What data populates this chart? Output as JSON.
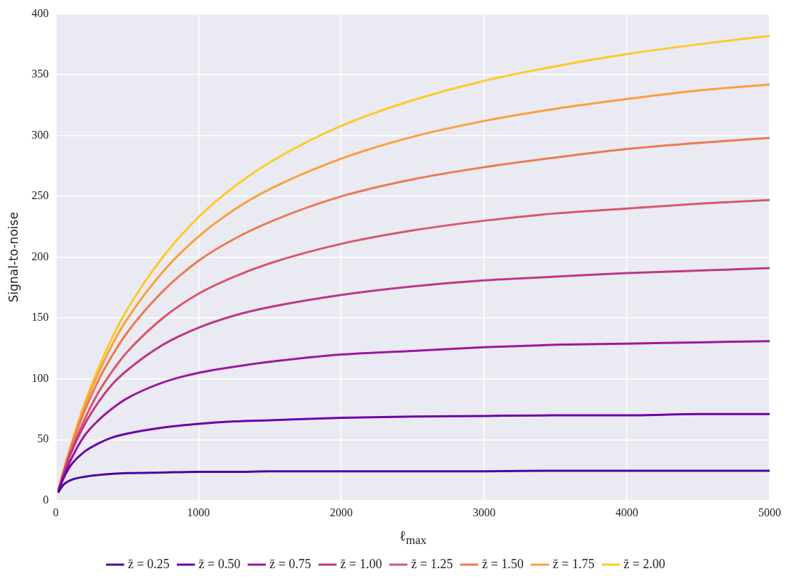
{
  "chart_data": {
    "type": "line",
    "xlabel": "ℓ$_{max}$",
    "ylabel": "Signal-to-noise",
    "x": [
      20,
      50,
      100,
      200,
      300,
      400,
      500,
      750,
      1000,
      1250,
      1500,
      2000,
      2500,
      3000,
      3500,
      4000,
      4500,
      5000
    ],
    "xlim": [
      0,
      5000
    ],
    "xticks": [
      0,
      1000,
      2000,
      3000,
      4000,
      5000
    ],
    "ylim": [
      0,
      400
    ],
    "yticks": [
      0,
      50,
      100,
      150,
      200,
      250,
      300,
      350,
      400
    ],
    "grid": true,
    "legend": "bottom",
    "marker": "none",
    "line_style": "solid",
    "series": [
      {
        "name": "z̄ = 0.25",
        "color": "#4c02a1",
        "values": [
          7,
          12.5,
          16.5,
          19.5,
          21,
          22,
          22.5,
          23,
          23.5,
          23.5,
          24,
          24,
          24,
          24,
          24.5,
          24.5,
          24.5,
          24.5
        ]
      },
      {
        "name": "z̄ = 0.50",
        "color": "#6a00a8",
        "values": [
          8,
          17,
          28,
          40,
          47,
          52,
          55,
          60,
          63,
          65,
          66,
          68,
          69,
          69.5,
          70,
          70,
          71,
          71
        ]
      },
      {
        "name": "z̄ = 0.75",
        "color": "#9c179e",
        "values": [
          8,
          18,
          32,
          53,
          66,
          76,
          84,
          97,
          105,
          110,
          114,
          120,
          123,
          126,
          128,
          129,
          130,
          131
        ]
      },
      {
        "name": "z̄ = 1.00",
        "color": "#bd3786",
        "values": [
          9,
          20,
          37,
          62,
          81,
          96,
          107,
          128,
          142,
          152,
          159,
          169,
          176,
          181,
          184,
          187,
          189,
          191
        ]
      },
      {
        "name": "z̄ = 1.25",
        "color": "#d8576b",
        "values": [
          9,
          20,
          38,
          66,
          89,
          107,
          122,
          150,
          170,
          184,
          195,
          211,
          222,
          230,
          236,
          240,
          244,
          247
        ]
      },
      {
        "name": "z̄ = 1.50",
        "color": "#ed7953",
        "values": [
          9,
          22,
          41,
          73,
          99,
          120,
          138,
          172,
          197,
          215,
          229,
          250,
          264,
          274,
          282,
          289,
          294,
          298
        ]
      },
      {
        "name": "z̄ = 1.75",
        "color": "#fb9f3a",
        "values": [
          9,
          22,
          42,
          77,
          105,
          129,
          149,
          188,
          217,
          239,
          256,
          281,
          299,
          312,
          322,
          330,
          337,
          342
        ]
      },
      {
        "name": "z̄ = 2.00",
        "color": "#fdca26",
        "values": [
          9,
          23,
          43,
          79,
          109,
          135,
          157,
          200,
          233,
          258,
          278,
          308,
          329,
          345,
          357,
          367,
          375,
          382
        ]
      }
    ]
  }
}
